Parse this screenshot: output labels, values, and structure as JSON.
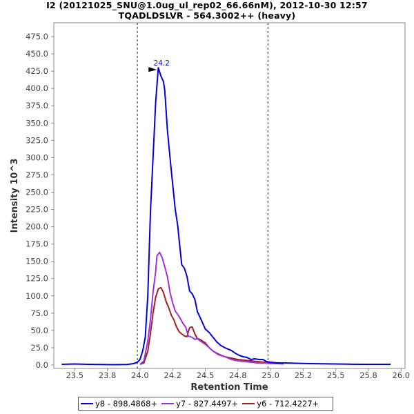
{
  "header": {
    "title": "I2 (20121025_SNU@1.0ug_ul_rep02_66.66nM), 2012-10-30 12:57",
    "subtitle": "TQADLDSLVR - 564.3002++ (heavy)"
  },
  "chart_data": {
    "type": "line",
    "xlabel": "Retention Time",
    "ylabel": "Intensity 10^3",
    "xlim": [
      23.34,
      26.03
    ],
    "ylim": [
      -5,
      495
    ],
    "x_ticks": [
      "23.5",
      "23.8",
      "24.0",
      "24.2",
      "24.5",
      "24.8",
      "25.0",
      "25.2",
      "25.5",
      "25.8",
      "26.0"
    ],
    "x_tick_values": [
      23.5,
      23.75,
      24.0,
      24.25,
      24.5,
      24.75,
      25.0,
      25.25,
      25.5,
      25.75,
      26.0
    ],
    "y_ticks": [
      "0.0",
      "25.0",
      "50.0",
      "75.0",
      "100.0",
      "125.0",
      "150.0",
      "175.0",
      "200.0",
      "225.0",
      "250.0",
      "275.0",
      "300.0",
      "325.0",
      "350.0",
      "375.0",
      "400.0",
      "425.0",
      "450.0",
      "475.0"
    ],
    "y_tick_values": [
      0,
      25,
      50,
      75,
      100,
      125,
      150,
      175,
      200,
      225,
      250,
      275,
      300,
      325,
      350,
      375,
      400,
      425,
      450,
      475
    ],
    "integration_bounds": [
      23.98,
      24.98
    ],
    "peak_annotation": {
      "x": 24.15,
      "y": 430,
      "label": "24.2"
    },
    "grid": false,
    "legend_position": "bottom",
    "series": [
      {
        "name": "y8 - 898.4868+",
        "color": "#0000d8",
        "points": [
          [
            23.4,
            1
          ],
          [
            23.5,
            1.5
          ],
          [
            23.6,
            1
          ],
          [
            23.7,
            0.8
          ],
          [
            23.8,
            0.5
          ],
          [
            23.9,
            0.8
          ],
          [
            23.95,
            2
          ],
          [
            23.98,
            4
          ],
          [
            24.0,
            8
          ],
          [
            24.02,
            20
          ],
          [
            24.04,
            40
          ],
          [
            24.06,
            100
          ],
          [
            24.08,
            220
          ],
          [
            24.1,
            300
          ],
          [
            24.12,
            380
          ],
          [
            24.14,
            430
          ],
          [
            24.16,
            418
          ],
          [
            24.18,
            410
          ],
          [
            24.19,
            397
          ],
          [
            24.21,
            340
          ],
          [
            24.23,
            300
          ],
          [
            24.25,
            262
          ],
          [
            24.27,
            225
          ],
          [
            24.29,
            200
          ],
          [
            24.3,
            180
          ],
          [
            24.32,
            145
          ],
          [
            24.34,
            140
          ],
          [
            24.36,
            128
          ],
          [
            24.38,
            107
          ],
          [
            24.4,
            103
          ],
          [
            24.42,
            95
          ],
          [
            24.44,
            77
          ],
          [
            24.47,
            65
          ],
          [
            24.5,
            52
          ],
          [
            24.53,
            47
          ],
          [
            24.56,
            40
          ],
          [
            24.59,
            33
          ],
          [
            24.62,
            28
          ],
          [
            24.65,
            25
          ],
          [
            24.7,
            21
          ],
          [
            24.73,
            17
          ],
          [
            24.76,
            14
          ],
          [
            24.79,
            12
          ],
          [
            24.82,
            11
          ],
          [
            24.85,
            8
          ],
          [
            24.88,
            9
          ],
          [
            24.91,
            8
          ],
          [
            24.94,
            8
          ],
          [
            24.97,
            5
          ],
          [
            25.0,
            4
          ],
          [
            25.05,
            3
          ],
          [
            25.1,
            3
          ],
          [
            25.2,
            2.5
          ],
          [
            25.3,
            2
          ],
          [
            25.4,
            1.8
          ],
          [
            25.5,
            1.5
          ],
          [
            25.6,
            1.2
          ],
          [
            25.7,
            1
          ],
          [
            25.8,
            1
          ],
          [
            25.92,
            1
          ]
        ]
      },
      {
        "name": "y7 - 827.4497+",
        "color": "#a030d8",
        "points": [
          [
            24.0,
            1
          ],
          [
            24.03,
            6
          ],
          [
            24.06,
            35
          ],
          [
            24.08,
            65
          ],
          [
            24.1,
            105
          ],
          [
            24.12,
            135
          ],
          [
            24.13,
            158
          ],
          [
            24.15,
            163
          ],
          [
            24.17,
            155
          ],
          [
            24.19,
            142
          ],
          [
            24.21,
            128
          ],
          [
            24.23,
            105
          ],
          [
            24.25,
            90
          ],
          [
            24.27,
            78
          ],
          [
            24.3,
            70
          ],
          [
            24.33,
            60
          ],
          [
            24.35,
            55
          ],
          [
            24.37,
            42
          ],
          [
            24.4,
            40
          ],
          [
            24.42,
            37
          ],
          [
            24.44,
            38
          ],
          [
            24.46,
            35
          ],
          [
            24.5,
            30
          ],
          [
            24.53,
            25
          ],
          [
            24.56,
            20
          ],
          [
            24.6,
            15
          ],
          [
            24.65,
            12
          ],
          [
            24.7,
            8
          ],
          [
            24.75,
            6
          ],
          [
            24.8,
            5
          ],
          [
            24.85,
            4
          ],
          [
            24.9,
            3
          ],
          [
            24.95,
            3
          ],
          [
            25.0,
            2
          ],
          [
            25.05,
            2
          ],
          [
            25.1,
            1.5
          ]
        ]
      },
      {
        "name": "y6 - 712.4227+",
        "color": "#a02020",
        "points": [
          [
            24.0,
            1
          ],
          [
            24.03,
            3
          ],
          [
            24.06,
            20
          ],
          [
            24.08,
            45
          ],
          [
            24.1,
            75
          ],
          [
            24.12,
            98
          ],
          [
            24.14,
            110
          ],
          [
            24.16,
            112
          ],
          [
            24.18,
            105
          ],
          [
            24.2,
            92
          ],
          [
            24.22,
            83
          ],
          [
            24.24,
            72
          ],
          [
            24.26,
            65
          ],
          [
            24.28,
            55
          ],
          [
            24.3,
            48
          ],
          [
            24.32,
            45
          ],
          [
            24.34,
            42
          ],
          [
            24.36,
            41
          ],
          [
            24.38,
            54
          ],
          [
            24.4,
            55
          ],
          [
            24.42,
            45
          ],
          [
            24.44,
            38
          ],
          [
            24.46,
            37
          ],
          [
            24.5,
            32
          ],
          [
            24.53,
            25
          ],
          [
            24.56,
            20
          ],
          [
            24.6,
            16
          ],
          [
            24.65,
            12
          ],
          [
            24.7,
            10
          ],
          [
            24.75,
            8
          ],
          [
            24.8,
            7
          ],
          [
            24.85,
            6
          ],
          [
            24.9,
            5
          ],
          [
            24.95,
            4
          ],
          [
            25.0,
            4
          ],
          [
            25.05,
            3
          ],
          [
            25.1,
            3
          ]
        ]
      }
    ]
  }
}
